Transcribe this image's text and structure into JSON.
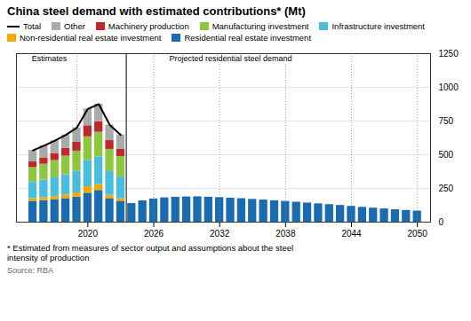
{
  "chart_data": {
    "type": "bar",
    "stacked": true,
    "title": "China steel demand with estimated contributions* (Mt)",
    "x": [
      2015,
      2016,
      2017,
      2018,
      2019,
      2020,
      2021,
      2022,
      2023,
      2024,
      2025,
      2026,
      2027,
      2028,
      2029,
      2030,
      2031,
      2032,
      2033,
      2034,
      2035,
      2036,
      2037,
      2038,
      2039,
      2040,
      2041,
      2042,
      2043,
      2044,
      2045,
      2046,
      2047,
      2048,
      2049,
      2050
    ],
    "series": [
      {
        "name": "Residential real estate investment",
        "color": "#1a6cb0",
        "values": [
          155,
          160,
          165,
          175,
          185,
          215,
          235,
          175,
          155,
          138,
          158,
          172,
          180,
          185,
          187,
          188,
          185,
          182,
          178,
          174,
          169,
          164,
          159,
          154,
          148,
          142,
          136,
          130,
          124,
          117,
          110,
          104,
          98,
          92,
          87,
          82
        ]
      },
      {
        "name": "Non-residential real estate investment",
        "color": "#f5a800",
        "values": [
          20,
          22,
          24,
          27,
          32,
          48,
          44,
          25,
          20,
          null,
          null,
          null,
          null,
          null,
          null,
          null,
          null,
          null,
          null,
          null,
          null,
          null,
          null,
          null,
          null,
          null,
          null,
          null,
          null,
          null,
          null,
          null,
          null,
          null,
          null,
          null
        ]
      },
      {
        "name": "Infrastructure investment",
        "color": "#49bde0",
        "values": [
          120,
          130,
          140,
          150,
          160,
          195,
          205,
          175,
          160,
          null,
          null,
          null,
          null,
          null,
          null,
          null,
          null,
          null,
          null,
          null,
          null,
          null,
          null,
          null,
          null,
          null,
          null,
          null,
          null,
          null,
          null,
          null,
          null,
          null,
          null,
          null
        ]
      },
      {
        "name": "Manufacturing investment",
        "color": "#8dc63f",
        "values": [
          110,
          118,
          128,
          138,
          150,
          175,
          183,
          165,
          152,
          null,
          null,
          null,
          null,
          null,
          null,
          null,
          null,
          null,
          null,
          null,
          null,
          null,
          null,
          null,
          null,
          null,
          null,
          null,
          null,
          null,
          null,
          null,
          null,
          null,
          null,
          null
        ]
      },
      {
        "name": "Machinery production",
        "color": "#c0272d",
        "values": [
          42,
          47,
          52,
          57,
          65,
          82,
          78,
          65,
          55,
          null,
          null,
          null,
          null,
          null,
          null,
          null,
          null,
          null,
          null,
          null,
          null,
          null,
          null,
          null,
          null,
          null,
          null,
          null,
          null,
          null,
          null,
          null,
          null,
          null,
          null,
          null
        ]
      },
      {
        "name": "Other",
        "color": "#aaaaaa",
        "values": [
          85,
          90,
          95,
          100,
          108,
          125,
          130,
          115,
          105,
          null,
          null,
          null,
          null,
          null,
          null,
          null,
          null,
          null,
          null,
          null,
          null,
          null,
          null,
          null,
          null,
          null,
          null,
          null,
          null,
          null,
          null,
          null,
          null,
          null,
          null,
          null
        ]
      },
      {
        "name": "Total",
        "type": "line",
        "color": "#000000",
        "values": [
          532,
          567,
          604,
          647,
          700,
          840,
          875,
          720,
          647,
          null,
          null,
          null,
          null,
          null,
          null,
          null,
          null,
          null,
          null,
          null,
          null,
          null,
          null,
          null,
          null,
          null,
          null,
          null,
          null,
          null,
          null,
          null,
          null,
          null,
          null,
          null
        ]
      }
    ],
    "xlim": [
      2013.5,
      2051.2
    ],
    "xticks": [
      2020,
      2026,
      2032,
      2038,
      2044,
      2050
    ],
    "ylim": [
      0,
      1250
    ],
    "yticks": [
      0,
      250,
      500,
      750,
      1000,
      1250
    ],
    "grid": true,
    "legend": "top",
    "annotations": [
      {
        "text": "Estimates",
        "x": 2016.5,
        "y": 1195
      },
      {
        "text": "Projected residential steel demand",
        "x": 2033,
        "y": 1195
      }
    ],
    "divider": 2023.5,
    "dotted_lines": [
      2019,
      2026,
      2032,
      2038,
      2044,
      2050
    ],
    "footnote": "* Estimated from measures of sector output and assumptions about the steel\nintensity of production",
    "source": "Source: RBA"
  }
}
